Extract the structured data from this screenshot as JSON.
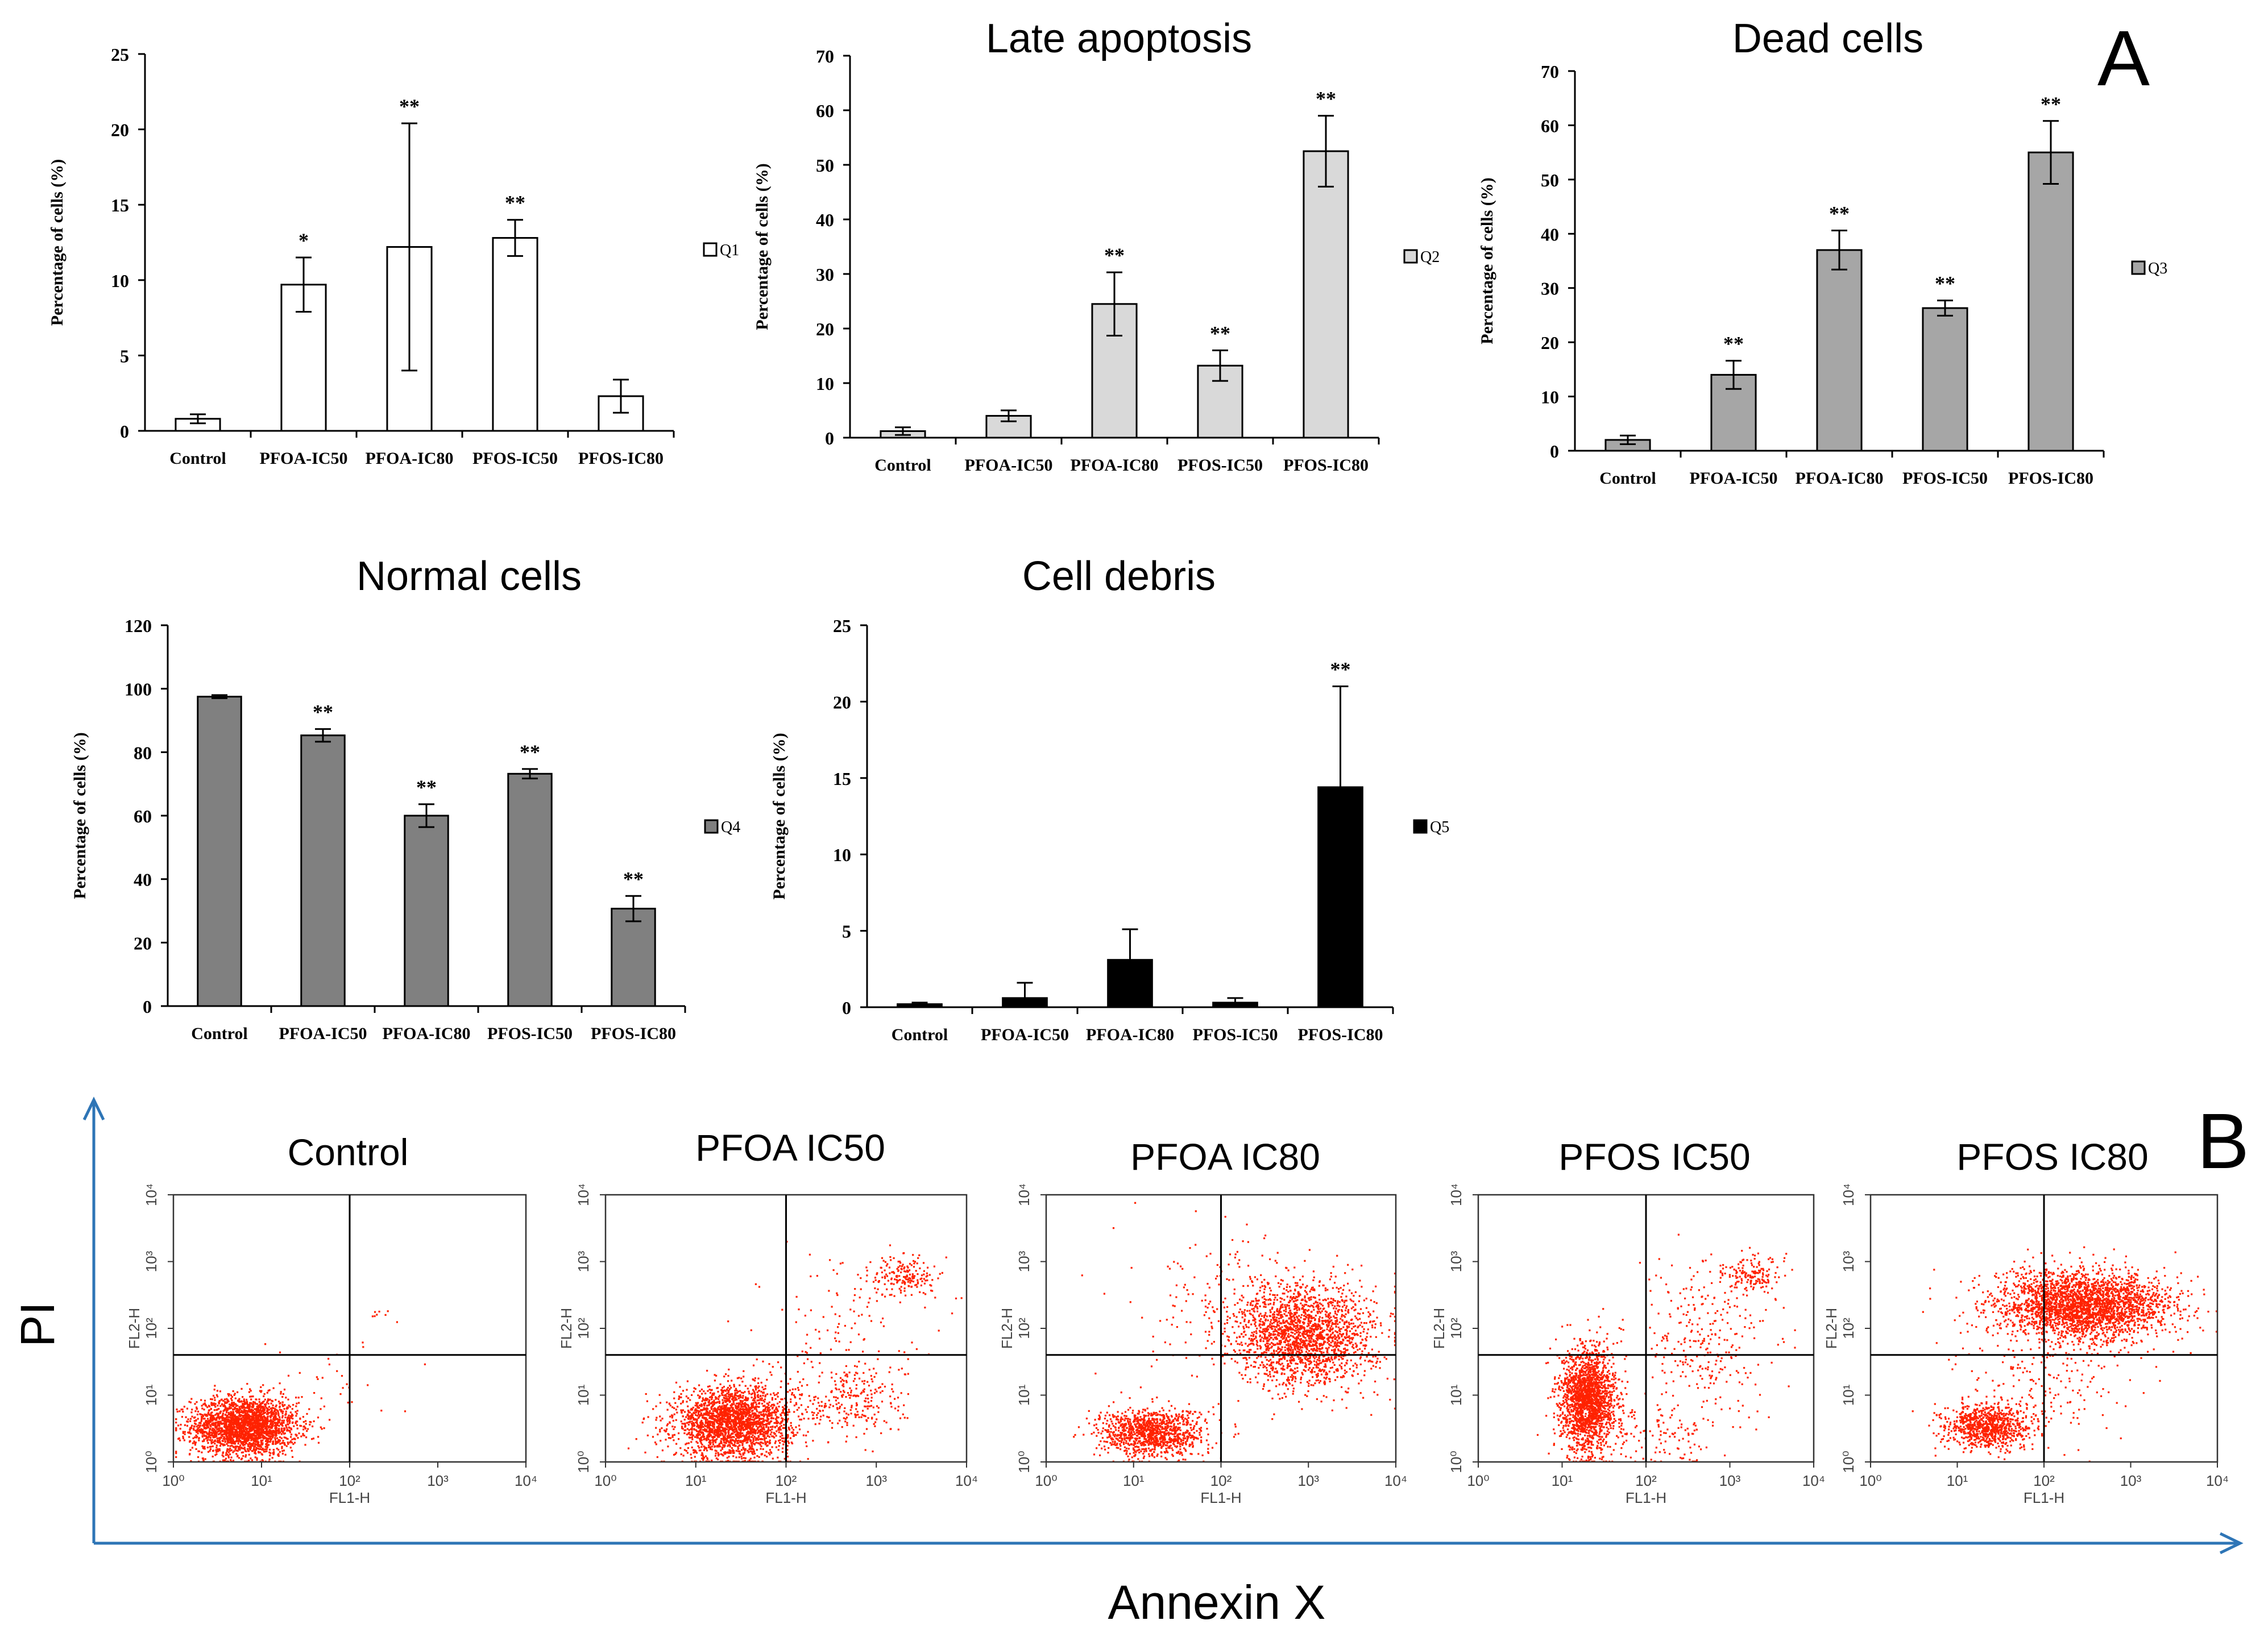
{
  "panel_labels": {
    "a": "A",
    "b": "B"
  },
  "colors": {
    "axis": "#000000",
    "q1": "#ffffff",
    "q2": "#d9d9d9",
    "q3": "#a6a6a6",
    "q4": "#808080",
    "q5": "#000000",
    "flow_dots": "#ff2200",
    "arrow": "#2e75b6"
  },
  "chart_data": [
    {
      "type": "bar",
      "title": "",
      "ylabel": "Percentage of cells (%)",
      "xlabel": "",
      "ylim": [
        0,
        25
      ],
      "ytick_step": 5,
      "categories": [
        "Control",
        "PFOA-IC50",
        "PFOA-IC80",
        "PFOS-IC50",
        "PFOS-IC80"
      ],
      "series": [
        {
          "name": "Q1",
          "values": [
            0.8,
            9.7,
            12.2,
            12.8,
            2.3
          ],
          "errors": [
            0.3,
            1.8,
            8.2,
            1.2,
            1.1
          ],
          "significance": [
            "",
            "*",
            "**",
            "**",
            ""
          ]
        }
      ],
      "legend": "right"
    },
    {
      "type": "bar",
      "title": "Late apoptosis",
      "ylabel": "Percentage of cells (%)",
      "xlabel": "",
      "ylim": [
        0,
        70
      ],
      "ytick_step": 10,
      "categories": [
        "Control",
        "PFOA-IC50",
        "PFOA-IC80",
        "PFOS-IC50",
        "PFOS-IC80"
      ],
      "series": [
        {
          "name": "Q2",
          "values": [
            1.2,
            4.0,
            24.5,
            13.2,
            52.5
          ],
          "errors": [
            0.7,
            1.0,
            5.8,
            2.8,
            6.5
          ],
          "significance": [
            "",
            "",
            "**",
            "**",
            "**"
          ]
        }
      ],
      "legend": "right"
    },
    {
      "type": "bar",
      "title": "Dead cells",
      "ylabel": "Percentage of cells (%)",
      "xlabel": "",
      "ylim": [
        0,
        70
      ],
      "ytick_step": 10,
      "categories": [
        "Control",
        "PFOA-IC50",
        "PFOA-IC80",
        "PFOS-IC50",
        "PFOS-IC80"
      ],
      "series": [
        {
          "name": "Q3",
          "values": [
            2.0,
            14.0,
            37.0,
            26.3,
            55.0
          ],
          "errors": [
            0.8,
            2.6,
            3.6,
            1.4,
            5.8
          ],
          "significance": [
            "",
            "**",
            "**",
            "**",
            "**"
          ]
        }
      ],
      "legend": "right"
    },
    {
      "type": "bar",
      "title": "Normal cells",
      "ylabel": "Percentage of cells (%)",
      "xlabel": "",
      "ylim": [
        0,
        120
      ],
      "ytick_step": 20,
      "categories": [
        "Control",
        "PFOA-IC50",
        "PFOA-IC80",
        "PFOS-IC50",
        "PFOS-IC80"
      ],
      "series": [
        {
          "name": "Q4",
          "values": [
            97.5,
            85.3,
            60.0,
            73.2,
            30.7
          ],
          "errors": [
            0.5,
            2.0,
            3.6,
            1.5,
            4.0
          ],
          "significance": [
            "",
            "**",
            "**",
            "**",
            "**"
          ]
        }
      ],
      "legend": "right"
    },
    {
      "type": "bar",
      "title": "Cell debris",
      "ylabel": "Percentage of cells (%)",
      "xlabel": "",
      "ylim": [
        0,
        25
      ],
      "ytick_step": 5,
      "categories": [
        "Control",
        "PFOA-IC50",
        "PFOA-IC80",
        "PFOS-IC50",
        "PFOS-IC80"
      ],
      "series": [
        {
          "name": "Q5",
          "values": [
            0.2,
            0.6,
            3.1,
            0.3,
            14.4
          ],
          "errors": [
            0.1,
            1.0,
            2.0,
            0.3,
            6.6
          ],
          "significance": [
            "",
            "",
            "",
            "",
            "**"
          ]
        }
      ],
      "legend": "right"
    },
    {
      "type": "scatter",
      "subtype": "flow-cytometry-dot-plots",
      "xlabel": "Annexin X",
      "ylabel": "PI",
      "axis_scale": "log",
      "xlim": [
        1,
        10000
      ],
      "ylim": [
        1,
        10000
      ],
      "tick_label_x": "FL1-H",
      "tick_label_y": "FL2-H",
      "tick_labels": [
        "10⁰",
        "10¹",
        "10²",
        "10³",
        "10⁴"
      ],
      "plots": [
        {
          "title": "Control",
          "quadrant_gate": {
            "x": 100,
            "y": 40
          },
          "populations": [
            {
              "cx": 0.8,
              "cy": 0.55,
              "sx": 0.3,
              "sy": 0.22,
              "n": 2400
            },
            {
              "cx": 1.9,
              "cy": 1.3,
              "sx": 0.4,
              "sy": 0.3,
              "n": 25
            },
            {
              "cx": 2.35,
              "cy": 2.2,
              "sx": 0.07,
              "sy": 0.07,
              "n": 8
            }
          ]
        },
        {
          "title": "PFOA IC50",
          "quadrant_gate": {
            "x": 100,
            "y": 40
          },
          "populations": [
            {
              "cx": 1.4,
              "cy": 0.6,
              "sx": 0.32,
              "sy": 0.26,
              "n": 2300
            },
            {
              "cx": 2.7,
              "cy": 0.9,
              "sx": 0.32,
              "sy": 0.3,
              "n": 260
            },
            {
              "cx": 3.3,
              "cy": 2.8,
              "sx": 0.17,
              "sy": 0.15,
              "n": 180
            },
            {
              "cx": 2.6,
              "cy": 2.1,
              "sx": 0.45,
              "sy": 0.5,
              "n": 130
            }
          ]
        },
        {
          "title": "PFOA IC80",
          "quadrant_gate": {
            "x": 100,
            "y": 40
          },
          "populations": [
            {
              "cx": 1.2,
              "cy": 0.45,
              "sx": 0.3,
              "sy": 0.18,
              "n": 1100
            },
            {
              "cx": 2.95,
              "cy": 1.9,
              "sx": 0.4,
              "sy": 0.38,
              "n": 1900
            },
            {
              "cx": 2.3,
              "cy": 2.3,
              "sx": 0.6,
              "sy": 0.5,
              "n": 200
            }
          ]
        },
        {
          "title": "PFOS IC50",
          "quadrant_gate": {
            "x": 100,
            "y": 40
          },
          "populations": [
            {
              "cx": 1.3,
              "cy": 0.95,
              "sx": 0.16,
              "sy": 0.38,
              "n": 1900
            },
            {
              "cx": 3.25,
              "cy": 2.8,
              "sx": 0.17,
              "sy": 0.14,
              "n": 150
            },
            {
              "cx": 2.7,
              "cy": 1.9,
              "sx": 0.42,
              "sy": 0.55,
              "n": 280
            },
            {
              "cx": 2.1,
              "cy": 0.4,
              "sx": 0.4,
              "sy": 0.25,
              "n": 140
            }
          ]
        },
        {
          "title": "PFOS IC80",
          "quadrant_gate": {
            "x": 100,
            "y": 40
          },
          "populations": [
            {
              "cx": 1.35,
              "cy": 0.55,
              "sx": 0.24,
              "sy": 0.16,
              "n": 900
            },
            {
              "cx": 2.45,
              "cy": 2.35,
              "sx": 0.5,
              "sy": 0.26,
              "n": 2700
            },
            {
              "cx": 2.0,
              "cy": 1.3,
              "sx": 0.5,
              "sy": 0.45,
              "n": 200
            }
          ]
        }
      ]
    }
  ]
}
